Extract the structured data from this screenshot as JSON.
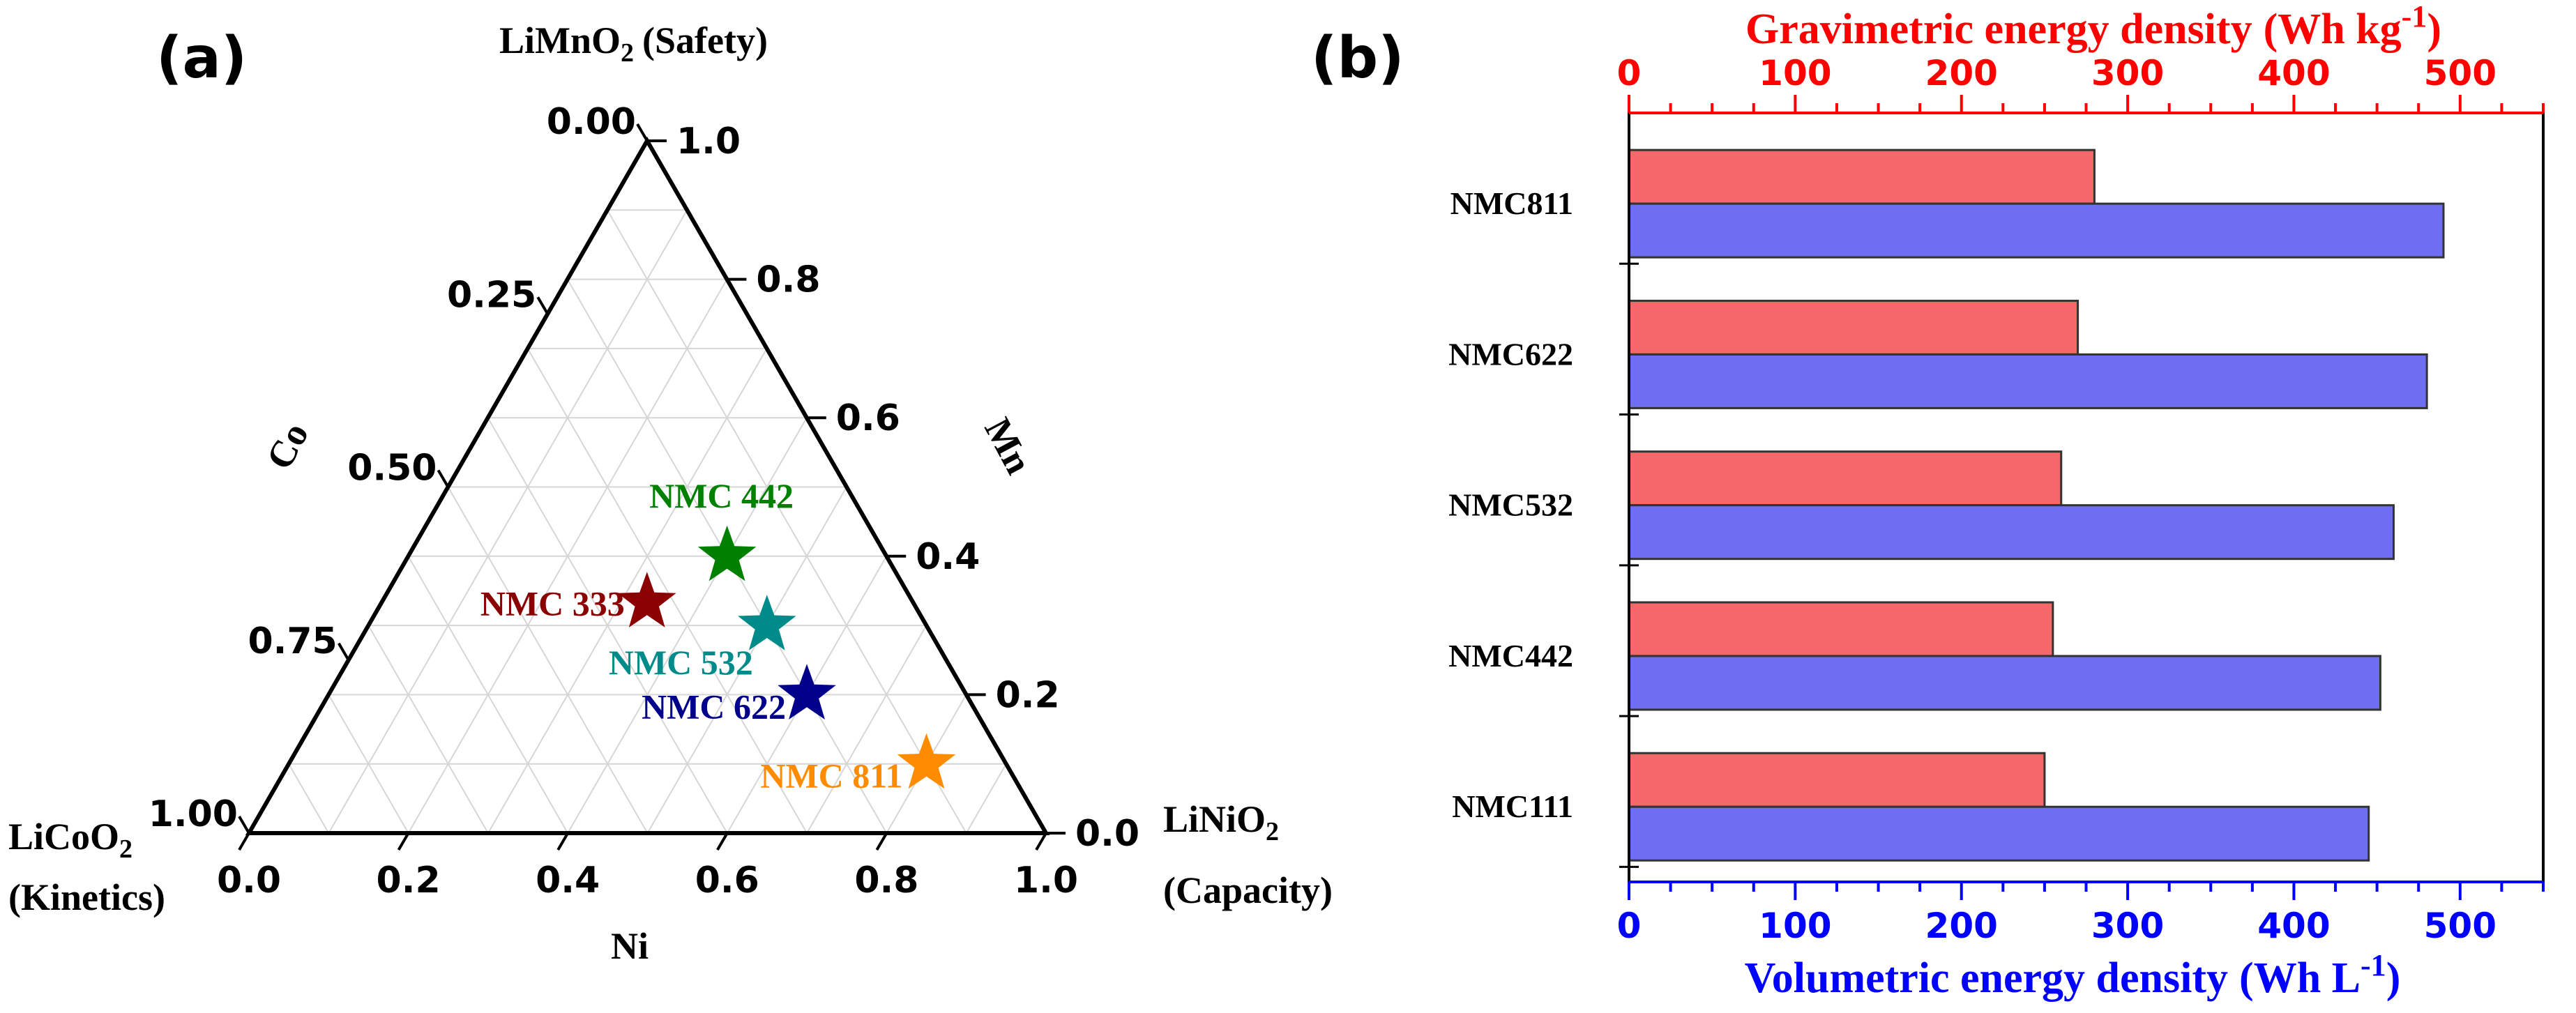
{
  "chart_data": [
    {
      "type": "scatter",
      "subtype": "ternary",
      "panel_label": "(a)",
      "vertices": {
        "top": {
          "name": "LiMnO",
          "sub": "2",
          "role": "(Safety)"
        },
        "left": {
          "name": "LiCoO",
          "sub": "2",
          "role": "(Kinetics)"
        },
        "right": {
          "name": "LiNiO",
          "sub": "2",
          "role": "(Capacity)"
        }
      },
      "axes": {
        "ni": {
          "label": "Ni",
          "ticks": [
            "0.0",
            "0.2",
            "0.4",
            "0.6",
            "0.8",
            "1.0"
          ],
          "values": [
            0,
            0.2,
            0.4,
            0.6,
            0.8,
            1.0
          ]
        },
        "mn": {
          "label": "Mn",
          "ticks": [
            "0.0",
            "0.2",
            "0.4",
            "0.6",
            "0.8",
            "1.0"
          ],
          "values": [
            0,
            0.2,
            0.4,
            0.6,
            0.8,
            1.0
          ]
        },
        "co": {
          "label": "Co",
          "ticks": [
            "0.00",
            "0.25",
            "0.50",
            "0.75",
            "1.00"
          ],
          "values": [
            0,
            0.25,
            0.5,
            0.75,
            1.0
          ]
        }
      },
      "grid": true,
      "points": [
        {
          "label": "NMC 333",
          "ni": 0.333,
          "mn": 0.333,
          "co": 0.333,
          "color": "#8b0000"
        },
        {
          "label": "NMC 442",
          "ni": 0.4,
          "mn": 0.4,
          "co": 0.2,
          "color": "#008000"
        },
        {
          "label": "NMC 532",
          "ni": 0.5,
          "mn": 0.3,
          "co": 0.2,
          "color": "#008b8b"
        },
        {
          "label": "NMC 622",
          "ni": 0.6,
          "mn": 0.2,
          "co": 0.2,
          "color": "#00008b"
        },
        {
          "label": "NMC 811",
          "ni": 0.8,
          "mn": 0.1,
          "co": 0.1,
          "color": "#ff8c00"
        }
      ]
    },
    {
      "type": "bar",
      "orientation": "horizontal",
      "panel_label": "(b)",
      "categories": [
        "NMC811",
        "NMC622",
        "NMC532",
        "NMC442",
        "NMC111"
      ],
      "series": [
        {
          "name": "Gravimetric energy density",
          "axis": "top",
          "color": "#f4686a",
          "values": [
            280,
            270,
            260,
            255,
            250
          ]
        },
        {
          "name": "Volumetric energy density",
          "axis": "bottom",
          "color": "#6e6ef2",
          "values": [
            490,
            480,
            460,
            452,
            445
          ]
        }
      ],
      "top_axis": {
        "label": "Gravimetric energy density",
        "unit": "(Wh kg",
        "exp": "-1",
        "close": ")",
        "range": [
          0,
          550
        ],
        "ticks": [
          0,
          100,
          200,
          300,
          400,
          500
        ],
        "color": "#ff0000"
      },
      "bottom_axis": {
        "label": "Volumetric energy density",
        "unit": "(Wh L",
        "exp": "-1",
        "close": ")",
        "range": [
          0,
          550
        ],
        "ticks": [
          0,
          100,
          200,
          300,
          400,
          500
        ],
        "color": "#0000ff"
      },
      "grid": false
    }
  ]
}
